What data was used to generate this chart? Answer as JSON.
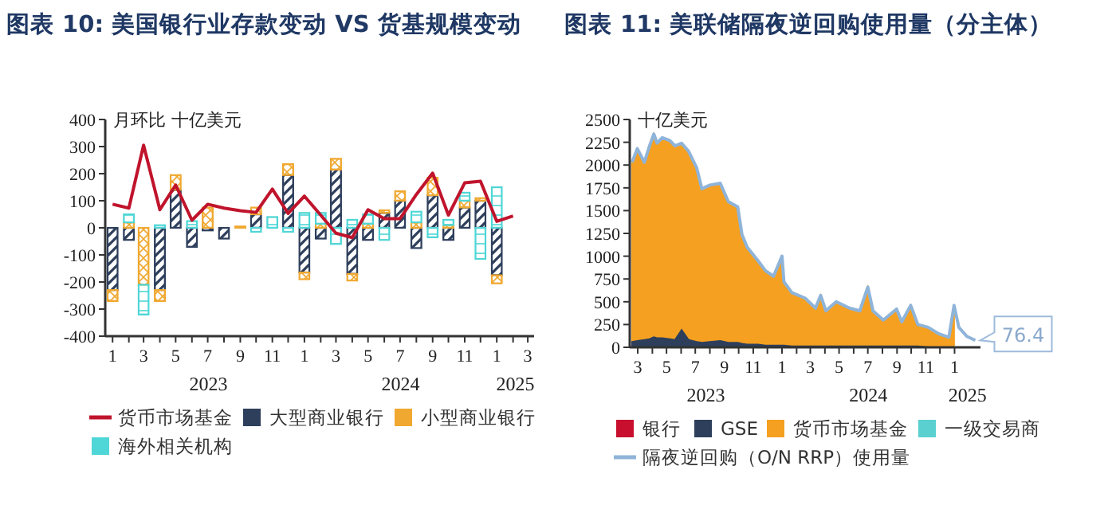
{
  "chart_data": [
    {
      "type": "bar",
      "title": "图表 10: 美国银行业存款变动 VS 货基规模变动",
      "ylabel": "月环比  十亿美元",
      "stacked": true,
      "legend": "bottom",
      "xlim": [
        "2022-12-18",
        "2025-03-13"
      ],
      "ylim": [
        -400,
        400
      ],
      "yticks": [
        -400,
        -300,
        -200,
        -100,
        0,
        100,
        200,
        300,
        400
      ],
      "xticks": [
        {
          "value": "2023-01",
          "label": "1"
        },
        {
          "value": "2023-02",
          "label": null
        },
        {
          "value": "2023-03",
          "label": "3"
        },
        {
          "value": "2023-04",
          "label": null
        },
        {
          "value": "2023-05",
          "label": "5"
        },
        {
          "value": "2023-06",
          "label": null
        },
        {
          "value": "2023-07",
          "label": "7"
        },
        {
          "value": "2023-08",
          "label": null
        },
        {
          "value": "2023-09",
          "label": "9"
        },
        {
          "value": "2023-10",
          "label": null
        },
        {
          "value": "2023-11",
          "label": "11"
        },
        {
          "value": "2023-12",
          "label": null
        },
        {
          "value": "2024-01",
          "label": "1"
        },
        {
          "value": "2024-02",
          "label": null
        },
        {
          "value": "2024-03",
          "label": "3"
        },
        {
          "value": "2024-04",
          "label": null
        },
        {
          "value": "2024-05",
          "label": "5"
        },
        {
          "value": "2024-06",
          "label": null
        },
        {
          "value": "2024-07",
          "label": "7"
        },
        {
          "value": "2024-08",
          "label": null
        },
        {
          "value": "2024-09",
          "label": "9"
        },
        {
          "value": "2024-10",
          "label": null
        },
        {
          "value": "2024-11",
          "label": "11"
        },
        {
          "value": "2024-12",
          "label": null
        },
        {
          "value": "2025-01",
          "label": "1"
        },
        {
          "value": "2025-02",
          "label": null
        },
        {
          "value": "2025-03",
          "label": "3"
        }
      ],
      "x": [
        "2023-01",
        "2023-02",
        "2023-03",
        "2023-04",
        "2023-05",
        "2023-06",
        "2023-07",
        "2023-08",
        "2023-09",
        "2023-10",
        "2023-11",
        "2023-12",
        "2024-01",
        "2024-02",
        "2024-03",
        "2024-04",
        "2024-05",
        "2024-06",
        "2024-07",
        "2024-08",
        "2024-09",
        "2024-10",
        "2024-11",
        "2024-12",
        "2025-01"
      ],
      "series": [
        {
          "name": "货币市场基金",
          "type": "line",
          "color": "#c0142c",
          "line_style": "solid",
          "marker": "none",
          "x": [
            "2023-01",
            "2023-02",
            "2023-03",
            "2023-04",
            "2023-05",
            "2023-06",
            "2023-07",
            "2023-08",
            "2023-09",
            "2023-10",
            "2023-11",
            "2023-12",
            "2024-01",
            "2024-02",
            "2024-03",
            "2024-04",
            "2024-05",
            "2024-06",
            "2024-07",
            "2024-08",
            "2024-09",
            "2024-10",
            "2024-11",
            "2024-12",
            "2025-01",
            "2025-02"
          ],
          "values": [
            87,
            73,
            305,
            67,
            158,
            28,
            87,
            73,
            63,
            57,
            143,
            53,
            117,
            47,
            -20,
            -36,
            67,
            34,
            34,
            123,
            202,
            47,
            166,
            172,
            24,
            44
          ]
        },
        {
          "name": "大型商业银行",
          "color": "#2e3f5c",
          "values": [
            -230,
            -45,
            0,
            -230,
            140,
            -70,
            -10,
            -40,
            0,
            50,
            null,
            195,
            -165,
            -40,
            215,
            -170,
            -45,
            55,
            100,
            -75,
            120,
            -45,
            75,
            100,
            -175
          ]
        },
        {
          "name": "小型商业银行",
          "color": "#f0a830",
          "values": [
            -40,
            20,
            -210,
            -40,
            55,
            0,
            75,
            0,
            5,
            25,
            0,
            40,
            -25,
            15,
            40,
            -25,
            15,
            10,
            35,
            20,
            65,
            10,
            25,
            10,
            -30
          ]
        },
        {
          "name": "海外相关机构",
          "color": "#4fd6d6",
          "values": [
            0,
            30,
            -110,
            10,
            0,
            25,
            0,
            0,
            0,
            -15,
            40,
            -15,
            55,
            40,
            -60,
            30,
            35,
            -45,
            0,
            40,
            -35,
            20,
            30,
            -115,
            150
          ]
        }
      ],
      "annotations": [
        "2023",
        "2024",
        "2025"
      ]
    },
    {
      "type": "area",
      "title": "图表 11: 美联储隔夜逆回购使用量（分主体）",
      "ylabel": "十亿美元",
      "stacked": true,
      "legend": "bottom",
      "xlim": [
        "2023-02-12",
        "2025-02-25"
      ],
      "ylim": [
        0,
        2500
      ],
      "yticks": [
        0,
        250,
        500,
        750,
        1000,
        1250,
        1500,
        1750,
        2000,
        2250,
        2500
      ],
      "xticks": [
        {
          "value": "2023-03",
          "label": "3"
        },
        {
          "value": "2023-04",
          "label": null
        },
        {
          "value": "2023-05",
          "label": "5"
        },
        {
          "value": "2023-06",
          "label": null
        },
        {
          "value": "2023-07",
          "label": "7"
        },
        {
          "value": "2023-08",
          "label": null
        },
        {
          "value": "2023-09",
          "label": "9"
        },
        {
          "value": "2023-10",
          "label": null
        },
        {
          "value": "2023-11",
          "label": "11"
        },
        {
          "value": "2023-12",
          "label": null
        },
        {
          "value": "2024-01",
          "label": "1"
        },
        {
          "value": "2024-02",
          "label": null
        },
        {
          "value": "2024-03",
          "label": "3"
        },
        {
          "value": "2024-04",
          "label": null
        },
        {
          "value": "2024-05",
          "label": "5"
        },
        {
          "value": "2024-06",
          "label": null
        },
        {
          "value": "2024-07",
          "label": "7"
        },
        {
          "value": "2024-08",
          "label": null
        },
        {
          "value": "2024-09",
          "label": "9"
        },
        {
          "value": "2024-10",
          "label": null
        },
        {
          "value": "2024-11",
          "label": "11"
        },
        {
          "value": "2024-12",
          "label": null
        },
        {
          "value": "2025-01",
          "label": "1"
        }
      ],
      "x": [
        "2023-02-17",
        "2023-02-28",
        "2023-03-15",
        "2023-03-26",
        "2023-04-04",
        "2023-04-11",
        "2023-04-22",
        "2023-05-08",
        "2023-05-19",
        "2023-06-02",
        "2023-06-17",
        "2023-07-04",
        "2023-07-15",
        "2023-08-01",
        "2023-08-23",
        "2023-09-09",
        "2023-09-29",
        "2023-10-08",
        "2023-10-19",
        "2023-11-11",
        "2023-11-27",
        "2023-12-14",
        "2024-01-01",
        "2024-01-05",
        "2024-01-22",
        "2024-02-19",
        "2024-03-12",
        "2024-03-23",
        "2024-04-03",
        "2024-04-25",
        "2024-05-23",
        "2024-06-14",
        "2024-07-01",
        "2024-07-12",
        "2024-08-03",
        "2024-08-31",
        "2024-09-11",
        "2024-09-30",
        "2024-10-15",
        "2024-11-06",
        "2024-11-28",
        "2024-12-20",
        "2024-12-31"
      ],
      "series": [
        {
          "name": "银行",
          "color": "#c8102e",
          "values": [
            null,
            null,
            null,
            null,
            null,
            null,
            null,
            null,
            null,
            null,
            null,
            null,
            null,
            null,
            null,
            null,
            null,
            null,
            null,
            null,
            null,
            null,
            null,
            null,
            null,
            null,
            null,
            null,
            null,
            null,
            null,
            null,
            null,
            null,
            null,
            null,
            null,
            null,
            null,
            null,
            null,
            null,
            null
          ]
        },
        {
          "name": "GSE",
          "color": "#2e3f5c",
          "values": [
            60,
            70,
            80,
            90,
            110,
            100,
            100,
            90,
            80,
            190,
            80,
            60,
            50,
            60,
            70,
            50,
            50,
            40,
            30,
            30,
            20,
            20,
            20,
            20,
            10,
            10,
            10,
            10,
            10,
            10,
            10,
            10,
            10,
            10,
            10,
            10,
            10,
            10,
            10,
            0,
            0,
            0,
            0
          ]
        },
        {
          "name": "货币市场基金",
          "color": "#f5a020",
          "values": [
            1970,
            2110,
            1950,
            2120,
            2230,
            2140,
            2200,
            2180,
            2130,
            2050,
            2070,
            1910,
            1690,
            1720,
            1730,
            1550,
            1490,
            1200,
            1070,
            920,
            820,
            760,
            980,
            700,
            590,
            530,
            420,
            560,
            390,
            490,
            420,
            390,
            650,
            390,
            290,
            410,
            270,
            450,
            240,
            220,
            150,
            110,
            460
          ]
        },
        {
          "name": "一级交易商",
          "color": "#5ad0d0",
          "values": [
            null,
            null,
            null,
            null,
            null,
            null,
            null,
            null,
            null,
            null,
            null,
            null,
            null,
            null,
            null,
            null,
            null,
            null,
            null,
            null,
            null,
            null,
            null,
            null,
            null,
            null,
            null,
            null,
            null,
            null,
            null,
            null,
            null,
            null,
            null,
            null,
            null,
            null,
            null,
            null,
            null,
            null,
            null
          ]
        },
        {
          "name": "隔夜逆回购（O/N RRP）使用量",
          "type": "line",
          "color": "#8fb4d9",
          "line_style": "solid",
          "marker": "none",
          "x": [
            "2023-02-17",
            "2023-02-28",
            "2023-03-15",
            "2023-03-26",
            "2023-04-04",
            "2023-04-11",
            "2023-04-22",
            "2023-05-08",
            "2023-05-19",
            "2023-06-02",
            "2023-06-17",
            "2023-07-04",
            "2023-07-15",
            "2023-08-01",
            "2023-08-23",
            "2023-09-09",
            "2023-09-29",
            "2023-10-08",
            "2023-10-19",
            "2023-11-11",
            "2023-11-27",
            "2023-12-14",
            "2024-01-01",
            "2024-01-05",
            "2024-01-22",
            "2024-02-19",
            "2024-03-12",
            "2024-03-23",
            "2024-04-03",
            "2024-04-25",
            "2024-05-23",
            "2024-06-14",
            "2024-07-01",
            "2024-07-12",
            "2024-08-03",
            "2024-08-31",
            "2024-09-11",
            "2024-09-30",
            "2024-10-15",
            "2024-11-06",
            "2024-11-28",
            "2024-12-20",
            "2024-12-31",
            "2025-01-10",
            "2025-01-27",
            "2025-02-14"
          ],
          "values": [
            2030,
            2180,
            2030,
            2210,
            2340,
            2240,
            2300,
            2270,
            2210,
            2240,
            2150,
            1970,
            1740,
            1780,
            1800,
            1600,
            1540,
            1240,
            1100,
            950,
            840,
            780,
            1000,
            720,
            600,
            540,
            430,
            570,
            400,
            500,
            430,
            400,
            660,
            400,
            300,
            420,
            280,
            460,
            250,
            220,
            150,
            110,
            460,
            220,
            120,
            76.4
          ]
        }
      ],
      "annotations": [
        "2023",
        "2024",
        "2025",
        {
          "text": "76.4",
          "x": "2025-02-14",
          "y": 76.4
        }
      ]
    }
  ]
}
